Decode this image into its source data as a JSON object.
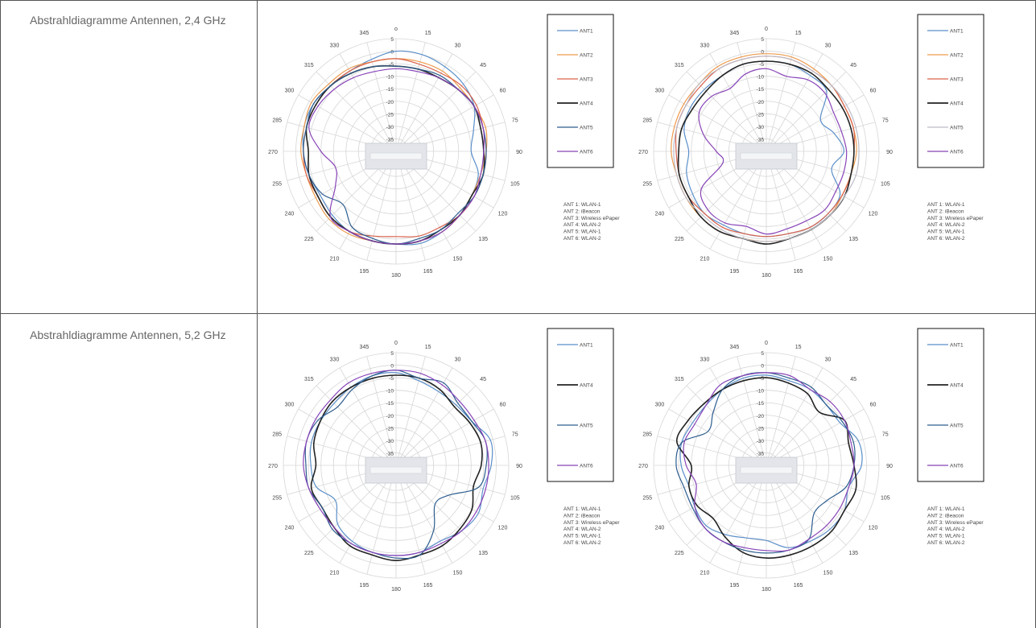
{
  "rows": [
    {
      "label": "Abstrahldiagramme Antennen, 2,4 GHz"
    },
    {
      "label": "Abstrahldiagramme Antennen, 5,2 GHz"
    }
  ],
  "polar_common": {
    "angle_labels": [
      "0",
      "15",
      "30",
      "45",
      "60",
      "75",
      "90",
      "105",
      "120",
      "135",
      "150",
      "165",
      "180",
      "195",
      "210",
      "225",
      "240",
      "255",
      "270",
      "285",
      "300",
      "315",
      "330",
      "345"
    ],
    "radial_labels": [
      "5",
      "0",
      "-5",
      "-10",
      "-15",
      "-20",
      "-25",
      "-30",
      "-35"
    ],
    "rmin": -40,
    "rmax": 5,
    "colors": {
      "ANT 1": "#5b8fc9",
      "ANT 2": "#ee9a4d",
      "ANT 3": "#d9624b",
      "ANT 4": "#222222",
      "ANT 5": "#2d5d8f",
      "ANT 6": "#8844b8"
    },
    "ant5_light": "#bcbcc8"
  },
  "notes": [
    "ANT  1: WLAN-1",
    "ANT  2: iBeacon",
    "ANT  3: Wireless ePaper",
    "ANT  4: WLAN-2",
    "ANT  5: WLAN-1",
    "ANT  6: WLAN-2"
  ],
  "chart_data": [
    {
      "type": "polar-line",
      "top_label": "o",
      "angles": [
        0,
        15,
        30,
        45,
        60,
        75,
        90,
        105,
        120,
        135,
        150,
        165,
        180,
        195,
        210,
        225,
        240,
        255,
        270,
        285,
        300,
        315,
        330,
        345
      ],
      "series": [
        {
          "name": "ANT 1",
          "values": [
            0,
            0,
            -1,
            -2,
            -4,
            -8,
            -10,
            -6,
            -5,
            -4,
            -3,
            -2,
            -3,
            -3,
            -3,
            -4,
            -5,
            -4,
            -3,
            -2,
            -2,
            -3,
            -3,
            -2
          ]
        },
        {
          "name": "ANT 2",
          "values": [
            -3,
            -3,
            -3,
            -4,
            -4,
            -3,
            -4,
            -5,
            -5,
            -4,
            -3,
            -3,
            -3,
            -3,
            -2,
            -2,
            -3,
            -3,
            -2,
            -2,
            -1,
            -2,
            -2,
            -3
          ]
        },
        {
          "name": "ANT 3",
          "values": [
            -3,
            -4,
            -4,
            -3,
            -3,
            -4,
            -4,
            -4,
            -4,
            -4,
            -5,
            -5,
            -6,
            -5,
            -3,
            -3,
            -4,
            -3,
            -3,
            -3,
            -3,
            -3,
            -3,
            -3
          ]
        },
        {
          "name": "ANT 4",
          "values": [
            -6,
            -6,
            -6,
            -5,
            -4,
            -5,
            -5,
            -4,
            -5,
            -4,
            -4,
            -3,
            -3,
            -3,
            -3,
            -3,
            -4,
            -4,
            -5,
            -3,
            -3,
            -3,
            -4,
            -5
          ]
        },
        {
          "name": "ANT 5",
          "values": [
            -6,
            -6,
            -5,
            -5,
            -4,
            -4,
            -4,
            -4,
            -4,
            -5,
            -4,
            -4,
            -3,
            -4,
            -5,
            -10,
            -6,
            -4,
            -3,
            -3,
            -2,
            -3,
            -4,
            -5
          ]
        },
        {
          "name": "ANT 6",
          "values": [
            -7,
            -7,
            -6,
            -5,
            -4,
            -4,
            -5,
            -5,
            -4,
            -4,
            -3,
            -3,
            -3,
            -3,
            -3,
            -3,
            -12,
            -15,
            -10,
            -4,
            -4,
            -5,
            -6,
            -7
          ]
        }
      ],
      "legend": [
        "ANT 1",
        "ANT 2",
        "ANT 3",
        "ANT 4",
        "ANT 5",
        "ANT 6"
      ]
    },
    {
      "type": "polar-line",
      "top_label": "0",
      "angles": [
        0,
        15,
        30,
        45,
        60,
        75,
        90,
        105,
        120,
        135,
        150,
        165,
        180,
        195,
        210,
        225,
        240,
        255,
        270,
        285,
        300,
        315,
        330,
        345
      ],
      "series": [
        {
          "name": "ANT 1",
          "values": [
            -4,
            -4,
            -5,
            -6,
            -15,
            -12,
            -9,
            -13,
            -6,
            -5,
            -5,
            -6,
            -6,
            -6,
            -6,
            -5,
            -6,
            -7,
            -9,
            -6,
            -5,
            -5,
            -5,
            -4
          ]
        },
        {
          "name": "ANT 2",
          "values": [
            -1,
            -1,
            -2,
            -3,
            -4,
            -4,
            -4,
            -5,
            -5,
            -4,
            -4,
            -4,
            -4,
            -4,
            -3,
            -3,
            -3,
            -3,
            -2,
            -2,
            -2,
            -2,
            -1,
            -1
          ]
        },
        {
          "name": "ANT 3",
          "values": [
            -2,
            -2,
            -3,
            -3,
            -4,
            -4,
            -5,
            -5,
            -5,
            -5,
            -5,
            -6,
            -6,
            -6,
            -5,
            -5,
            -4,
            -4,
            -4,
            -3,
            -3,
            -3,
            -2,
            -2
          ]
        },
        {
          "name": "ANT 4",
          "values": [
            -4,
            -4,
            -4,
            -5,
            -5,
            -5,
            -5,
            -5,
            -4,
            -4,
            -4,
            -4,
            -3,
            -4,
            -3,
            -3,
            -4,
            -4,
            -5,
            -5,
            -6,
            -6,
            -5,
            -4
          ]
        },
        {
          "name": "ANT 5",
          "values": [
            -2,
            -2,
            -3,
            -3,
            -3,
            -3,
            -3,
            -3,
            -4,
            -4,
            -4,
            -4,
            -4,
            -4,
            -4,
            -4,
            -3,
            -3,
            -3,
            -3,
            -3,
            -2,
            -2,
            -2
          ]
        },
        {
          "name": "ANT 6",
          "values": [
            -7,
            -9,
            -7,
            -7,
            -9,
            -9,
            -8,
            -8,
            -8,
            -7,
            -8,
            -8,
            -7,
            -9,
            -7,
            -7,
            -10,
            -22,
            -20,
            -14,
            -9,
            -9,
            -11,
            -8
          ]
        }
      ],
      "legend": [
        "ANT 1",
        "ANT 2",
        "ANT 3",
        "ANT 4",
        "ANT 5",
        "ANT 6"
      ]
    },
    {
      "type": "polar-line",
      "top_label": "0",
      "angles": [
        0,
        15,
        30,
        45,
        60,
        75,
        90,
        105,
        120,
        135,
        150,
        165,
        180,
        195,
        210,
        225,
        240,
        255,
        270,
        285,
        300,
        315,
        330,
        345
      ],
      "series": [
        {
          "name": "ANT 1",
          "values": [
            -3,
            -5,
            -6,
            -6,
            -5,
            -1,
            -2,
            -4,
            -2,
            -3,
            -5,
            -4,
            -4,
            -4,
            -5,
            -7,
            -12,
            -7,
            -6,
            -5,
            -5,
            -5,
            -4,
            -3
          ]
        },
        {
          "name": "ANT 4",
          "values": [
            -4,
            -4,
            -5,
            -7,
            -6,
            -5,
            -6,
            -8,
            -5,
            -4,
            -3,
            -3,
            -2,
            -3,
            -3,
            -5,
            -6,
            -5,
            -8,
            -6,
            -5,
            -4,
            -4,
            -4
          ]
        },
        {
          "name": "ANT 5",
          "values": [
            -2,
            -4,
            -2,
            -5,
            -5,
            -3,
            -4,
            -6,
            -16,
            -18,
            -10,
            -3,
            -3,
            -4,
            -4,
            -4,
            -6,
            -4,
            -4,
            -3,
            -4,
            -7,
            -5,
            -3
          ]
        },
        {
          "name": "ANT 6",
          "values": [
            -2,
            -2,
            -3,
            -4,
            -4,
            -3,
            -3,
            -3,
            -3,
            -3,
            -4,
            -4,
            -4,
            -4,
            -4,
            -5,
            -5,
            -4,
            -3,
            -3,
            -3,
            -3,
            -2,
            -2
          ]
        }
      ],
      "legend": [
        "ANT 1",
        "ANT 4",
        "ANT 5",
        "ANT 6"
      ]
    },
    {
      "type": "polar-line",
      "top_label": "0",
      "angles": [
        0,
        15,
        30,
        45,
        60,
        75,
        90,
        105,
        120,
        135,
        150,
        165,
        180,
        195,
        210,
        225,
        240,
        255,
        270,
        285,
        300,
        315,
        330,
        345
      ],
      "series": [
        {
          "name": "ANT 1",
          "values": [
            -4,
            -5,
            -5,
            -6,
            -6,
            -2,
            -2,
            -6,
            -4,
            -4,
            -5,
            -6,
            -10,
            -10,
            -8,
            -6,
            -7,
            -8,
            -6,
            -5,
            -6,
            -6,
            -5,
            -4
          ]
        },
        {
          "name": "ANT 4",
          "values": [
            -5,
            -6,
            -7,
            -10,
            -4,
            -6,
            -5,
            -3,
            -4,
            -3,
            -3,
            -3,
            -3,
            -4,
            -7,
            -10,
            -8,
            -8,
            -10,
            -3,
            -4,
            -5,
            -5,
            -5
          ]
        },
        {
          "name": "ANT 5",
          "values": [
            -3,
            -4,
            -4,
            -6,
            -5,
            -4,
            -5,
            -7,
            -12,
            -13,
            -6,
            -5,
            -5,
            -5,
            -5,
            -5,
            -6,
            -6,
            -4,
            -5,
            -13,
            -10,
            -5,
            -3
          ]
        },
        {
          "name": "ANT 6",
          "values": [
            -3,
            -3,
            -5,
            -4,
            -4,
            -5,
            -5,
            -6,
            -6,
            -6,
            -6,
            -5,
            -6,
            -6,
            -5,
            -5,
            -7,
            -11,
            -8,
            -6,
            -7,
            -6,
            -3,
            -3
          ]
        }
      ],
      "legend": [
        "ANT 1",
        "ANT 4",
        "ANT 5",
        "ANT 6"
      ]
    }
  ]
}
